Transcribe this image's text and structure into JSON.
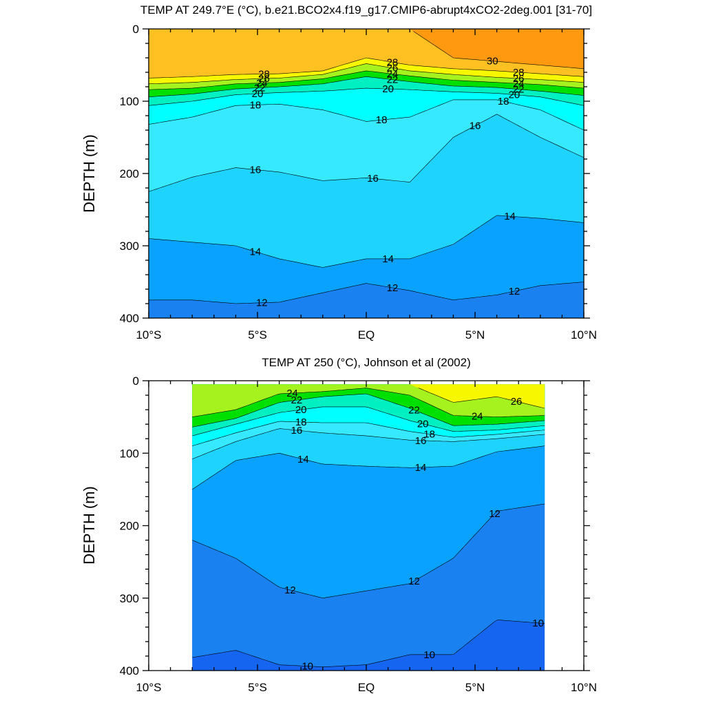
{
  "chart_data": [
    {
      "type": "contour",
      "title": "TEMP AT 249.7°E (°C), b.e21.BCO2x4.f19_g17.CMIP6-abrupt4xCO2-2deg.001 [31-70]",
      "ylabel": "DEPTH (m)",
      "xlabel": "",
      "xlim": [
        -10,
        10
      ],
      "ylim": [
        400,
        0
      ],
      "x_ticks": [
        -10,
        -5,
        0,
        5,
        10
      ],
      "x_tick_labels": [
        "10°S",
        "5°S",
        "EQ",
        "5°N",
        "10°N"
      ],
      "y_ticks": [
        0,
        100,
        200,
        300,
        400
      ],
      "y_tick_labels": [
        "0",
        "100",
        "200",
        "300",
        "400"
      ],
      "data_x_range": [
        -10,
        10
      ],
      "data_y_range": [
        0,
        400
      ],
      "contour_labels": [
        "28",
        "26",
        "24",
        "22",
        "20",
        "18",
        "28",
        "26",
        "24",
        "22",
        "20",
        "18",
        "30",
        "28",
        "26",
        "24",
        "22",
        "20",
        "18",
        "16",
        "16",
        "16",
        "14",
        "14",
        "14",
        "12",
        "12",
        "12"
      ],
      "x": [
        -10,
        -8,
        -6,
        -4,
        -2,
        0,
        2,
        4,
        6,
        8,
        10
      ],
      "isotherm_depths": [
        {
          "level": 30,
          "depth": [
            null,
            null,
            null,
            null,
            null,
            null,
            null,
            40,
            45,
            50,
            55
          ]
        },
        {
          "level": 28,
          "depth": [
            68,
            66,
            63,
            62,
            58,
            40,
            50,
            55,
            58,
            62,
            66
          ]
        },
        {
          "level": 26,
          "depth": [
            76,
            74,
            70,
            68,
            63,
            48,
            58,
            63,
            67,
            70,
            74
          ]
        },
        {
          "level": 24,
          "depth": [
            84,
            82,
            76,
            74,
            69,
            58,
            65,
            71,
            74,
            77,
            82
          ]
        },
        {
          "level": 22,
          "depth": [
            94,
            90,
            83,
            80,
            76,
            66,
            73,
            79,
            81,
            86,
            92
          ]
        },
        {
          "level": 20,
          "depth": [
            106,
            100,
            91,
            88,
            86,
            82,
            84,
            87,
            89,
            94,
            106
          ]
        },
        {
          "level": 18,
          "depth": [
            132,
            122,
            106,
            104,
            112,
            128,
            122,
            98,
            98,
            112,
            140
          ]
        },
        {
          "level": 16,
          "depth": [
            225,
            205,
            192,
            198,
            210,
            206,
            212,
            150,
            118,
            150,
            178
          ]
        },
        {
          "level": 14,
          "depth": [
            290,
            295,
            300,
            318,
            330,
            318,
            318,
            298,
            258,
            262,
            268
          ]
        },
        {
          "level": 12,
          "depth": [
            375,
            375,
            380,
            378,
            365,
            352,
            362,
            375,
            368,
            355,
            350
          ]
        }
      ],
      "fill_colors": [
        "#1a82f0",
        "#0aa2ff",
        "#1fd3ff",
        "#37e9ff",
        "#00ffff",
        "#00f0c2",
        "#00e000",
        "#a6f21e",
        "#f7f700",
        "#ffc022",
        "#ff9a10",
        "#ff6d00",
        "#ff2200",
        "#c80000"
      ]
    },
    {
      "type": "contour",
      "title": "TEMP AT 250 (°C), Johnson et al (2002)",
      "ylabel": "DEPTH (m)",
      "xlabel": "",
      "xlim": [
        -10,
        10
      ],
      "ylim": [
        400,
        0
      ],
      "x_ticks": [
        -10,
        -5,
        0,
        5,
        10
      ],
      "x_tick_labels": [
        "10°S",
        "5°S",
        "EQ",
        "5°N",
        "10°N"
      ],
      "y_ticks": [
        0,
        100,
        200,
        300,
        400
      ],
      "y_tick_labels": [
        "0",
        "100",
        "200",
        "300",
        "400"
      ],
      "data_x_range": [
        -8,
        8.2
      ],
      "data_y_range": [
        5,
        400
      ],
      "contour_labels": [
        "24",
        "22",
        "20",
        "18",
        "16",
        "22",
        "20",
        "18",
        "16",
        "24",
        "26",
        "14",
        "14",
        "12",
        "12",
        "12",
        "10",
        "10",
        "10"
      ],
      "x": [
        -8,
        -6,
        -4,
        -2,
        0,
        2,
        4,
        6,
        8.2
      ],
      "isotherm_depths": [
        {
          "level": 26,
          "depth": [
            null,
            null,
            null,
            null,
            null,
            null,
            30,
            22,
            38
          ]
        },
        {
          "level": 24,
          "depth": [
            50,
            40,
            18,
            15,
            10,
            20,
            48,
            50,
            48
          ]
        },
        {
          "level": 22,
          "depth": [
            64,
            52,
            30,
            22,
            18,
            38,
            62,
            60,
            55
          ]
        },
        {
          "level": 20,
          "depth": [
            76,
            60,
            44,
            36,
            36,
            55,
            70,
            68,
            62
          ]
        },
        {
          "level": 18,
          "depth": [
            90,
            72,
            56,
            58,
            58,
            70,
            78,
            74,
            68
          ]
        },
        {
          "level": 16,
          "depth": [
            108,
            84,
            66,
            72,
            76,
            82,
            84,
            80,
            74
          ]
        },
        {
          "level": 14,
          "depth": [
            150,
            110,
            100,
            115,
            118,
            120,
            118,
            98,
            90
          ]
        },
        {
          "level": 12,
          "depth": [
            220,
            245,
            285,
            300,
            290,
            280,
            245,
            180,
            170
          ]
        },
        {
          "level": 10,
          "depth": [
            382,
            372,
            392,
            395,
            392,
            378,
            378,
            330,
            335
          ]
        }
      ],
      "fill_colors": [
        "#1565f0",
        "#1a82f0",
        "#0aa2ff",
        "#1fd3ff",
        "#37e9ff",
        "#00ffff",
        "#00f0c2",
        "#00e000",
        "#a6f21e",
        "#f7f700",
        "#ffc022",
        "#ff9a10",
        "#ff4a00"
      ]
    }
  ]
}
